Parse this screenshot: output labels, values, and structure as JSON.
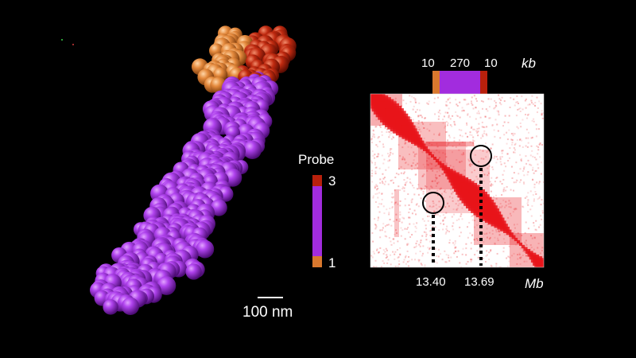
{
  "colors": {
    "background": "#000000",
    "probe_orange": "#d9782e",
    "probe_purple": "#a22cde",
    "probe_red": "#b8200c",
    "map_red": "#e8141a",
    "text": "#ffffff"
  },
  "structure": {
    "description_icon": "sphere-chromatin-model"
  },
  "scale_bar": {
    "label": "100 nm"
  },
  "probe_legend": {
    "title": "Probe",
    "top_label": "3",
    "bottom_label": "1"
  },
  "segment_bar": {
    "unit": "kb",
    "left": "10",
    "middle": "270",
    "right": "10"
  },
  "contact_map": {
    "unit": "Mb",
    "positions": [
      "13.40",
      "13.69"
    ]
  }
}
